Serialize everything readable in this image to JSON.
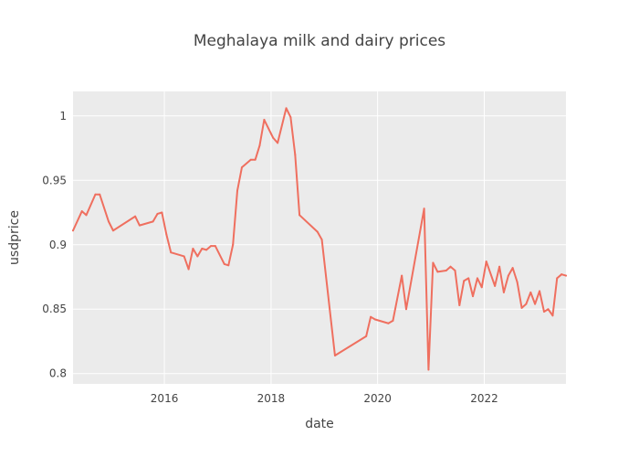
{
  "chart_data": {
    "type": "line",
    "title": "Meghalaya milk and dairy prices",
    "xlabel": "date",
    "ylabel": "usdprice",
    "x_axis_type": "date",
    "xlim": [
      "2014-04-15",
      "2023-07-15"
    ],
    "ylim": [
      0.792,
      1.019
    ],
    "x_ticks": [
      {
        "label": "2016",
        "value": "2016-01-01"
      },
      {
        "label": "2018",
        "value": "2018-01-01"
      },
      {
        "label": "2020",
        "value": "2020-01-01"
      },
      {
        "label": "2022",
        "value": "2022-01-01"
      }
    ],
    "y_ticks": [
      {
        "label": "0.8",
        "value": 0.8
      },
      {
        "label": "0.85",
        "value": 0.85
      },
      {
        "label": "0.9",
        "value": 0.9
      },
      {
        "label": "0.95",
        "value": 0.95
      },
      {
        "label": "1",
        "value": 1.0
      }
    ],
    "grid": true,
    "legend": "none",
    "colors": {
      "line": "#ef6f5f",
      "plot_bg": "#ebebeb",
      "grid": "#ffffff",
      "text": "#444444"
    },
    "series": [
      {
        "x": [
          "2014-04-15",
          "2014-06-15",
          "2014-07-15",
          "2014-09-15",
          "2014-10-15",
          "2014-12-15",
          "2015-01-15",
          "2015-06-15",
          "2015-07-15",
          "2015-10-15",
          "2015-11-15",
          "2015-12-15",
          "2016-01-15",
          "2016-02-15",
          "2016-05-15",
          "2016-06-15",
          "2016-07-15",
          "2016-08-15",
          "2016-09-15",
          "2016-10-15",
          "2016-11-15",
          "2016-12-15",
          "2017-02-15",
          "2017-03-15",
          "2017-04-15",
          "2017-05-15",
          "2017-06-15",
          "2017-08-15",
          "2017-09-15",
          "2017-10-15",
          "2017-11-15",
          "2018-01-15",
          "2018-02-15",
          "2018-04-15",
          "2018-05-15",
          "2018-06-15",
          "2018-07-15",
          "2018-11-15",
          "2018-12-15",
          "2019-03-15",
          "2019-10-15",
          "2019-11-15",
          "2019-12-15",
          "2020-03-15",
          "2020-04-15",
          "2020-06-15",
          "2020-07-15",
          "2020-11-15",
          "2020-12-15",
          "2021-01-15",
          "2021-02-15",
          "2021-04-15",
          "2021-05-15",
          "2021-06-15",
          "2021-07-15",
          "2021-08-15",
          "2021-09-15",
          "2021-10-15",
          "2021-11-15",
          "2021-12-15",
          "2022-01-15",
          "2022-03-15",
          "2022-04-15",
          "2022-05-15",
          "2022-06-15",
          "2022-07-15",
          "2022-08-15",
          "2022-09-15",
          "2022-10-15",
          "2022-11-15",
          "2022-12-15",
          "2023-01-15",
          "2023-02-15",
          "2023-03-15",
          "2023-04-15",
          "2023-05-15",
          "2023-06-15",
          "2023-07-15"
        ],
        "y": [
          0.911,
          0.926,
          0.923,
          0.939,
          0.939,
          0.918,
          0.911,
          0.922,
          0.915,
          0.918,
          0.924,
          0.925,
          0.908,
          0.894,
          0.891,
          0.881,
          0.897,
          0.891,
          0.897,
          0.896,
          0.899,
          0.899,
          0.885,
          0.884,
          0.9,
          0.942,
          0.96,
          0.966,
          0.966,
          0.977,
          0.997,
          0.983,
          0.979,
          1.006,
          0.999,
          0.97,
          0.923,
          0.91,
          0.904,
          0.814,
          0.829,
          0.844,
          0.842,
          0.839,
          0.841,
          0.876,
          0.85,
          0.928,
          0.803,
          0.886,
          0.879,
          0.88,
          0.883,
          0.88,
          0.853,
          0.872,
          0.874,
          0.86,
          0.874,
          0.867,
          0.887,
          0.868,
          0.883,
          0.863,
          0.876,
          0.882,
          0.871,
          0.851,
          0.854,
          0.863,
          0.854,
          0.864,
          0.848,
          0.85,
          0.845,
          0.874,
          0.877,
          0.876
        ]
      }
    ]
  }
}
